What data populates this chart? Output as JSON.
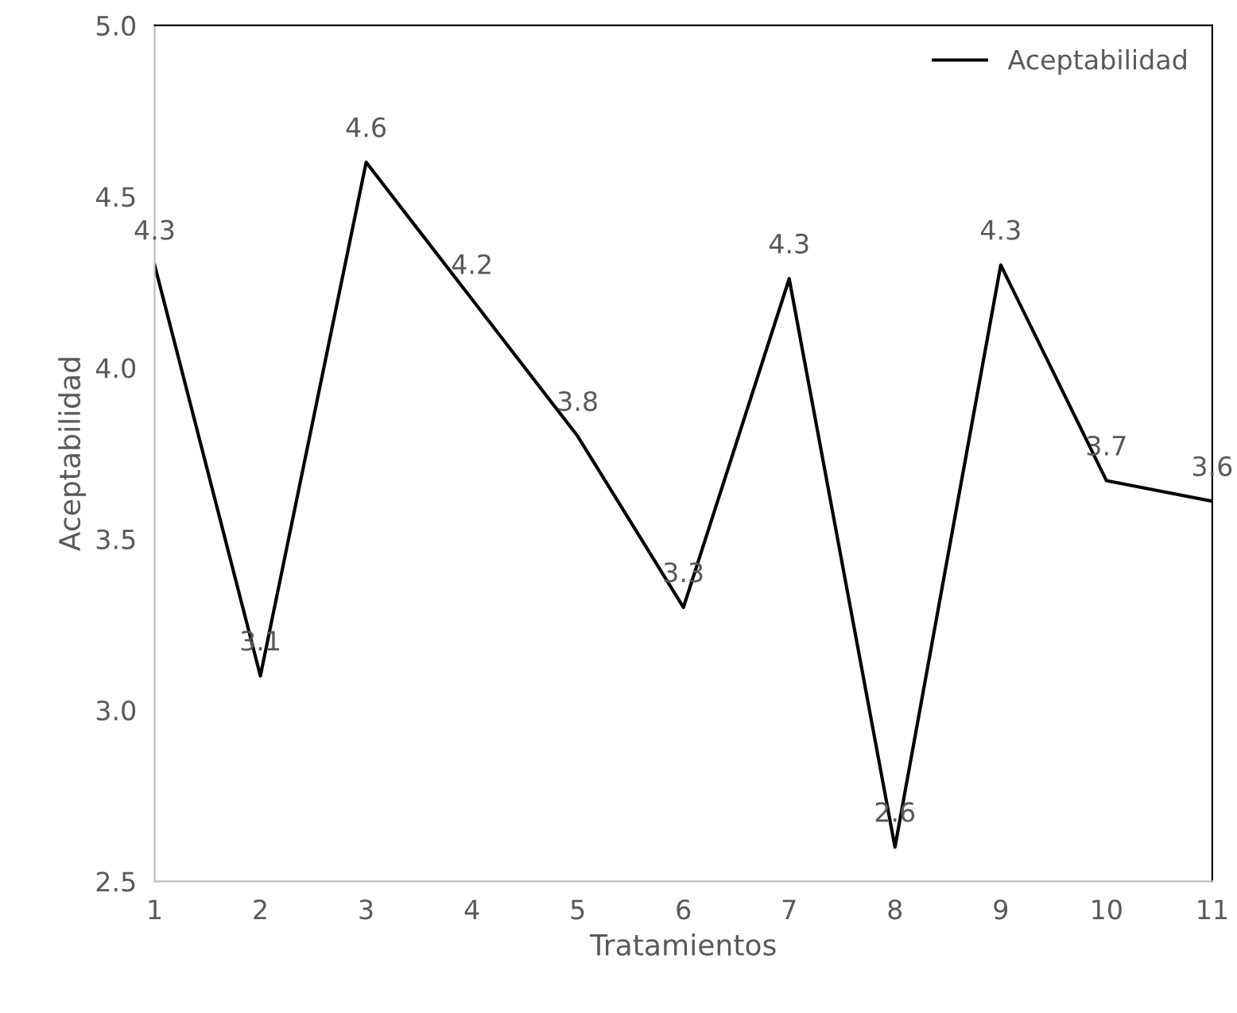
{
  "chart_data": {
    "type": "line",
    "xlabel": "Tratamientos",
    "ylabel": "Aceptabilidad",
    "x": [
      1,
      2,
      3,
      4,
      5,
      6,
      7,
      8,
      9,
      10,
      11
    ],
    "series": [
      {
        "name": "Aceptabilidad",
        "color": "#000000",
        "values": [
          4.3,
          3.1,
          4.6,
          4.2,
          3.8,
          3.3,
          4.26,
          2.6,
          4.3,
          3.67,
          3.61
        ],
        "value_labels": [
          "4.3",
          "3.1",
          "4.6",
          "4.2",
          "3.8",
          "3.3",
          "4.3",
          "2.6",
          "4.3",
          "3.7",
          "3.6"
        ]
      }
    ],
    "xlim": [
      1,
      11
    ],
    "xticks": [
      1,
      2,
      3,
      4,
      5,
      6,
      7,
      8,
      9,
      10,
      11
    ],
    "ylim": [
      2.5,
      5
    ],
    "yticks": [
      2.5,
      {
        "value": 3,
        "label": "3.0"
      },
      3.5,
      {
        "value": 4,
        "label": "4.0"
      },
      4.5,
      {
        "value": 5,
        "label": "5.0"
      }
    ],
    "grid": false,
    "legend": "top right",
    "marker": "none",
    "line_style": "solid"
  }
}
